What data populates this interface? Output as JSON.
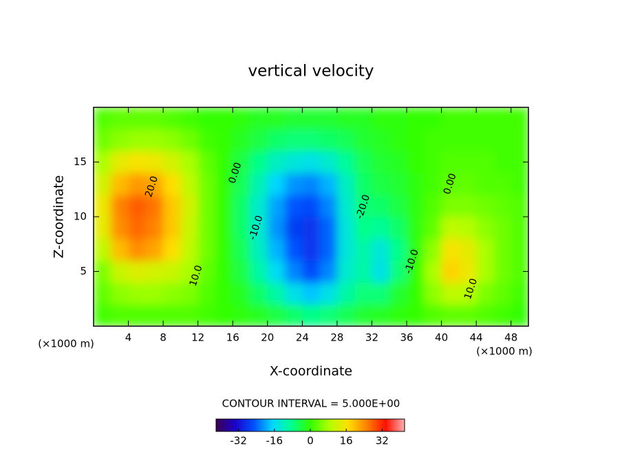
{
  "chart_data": {
    "type": "contour",
    "title": "vertical velocity",
    "x_label": "X-coordinate",
    "y_label": "Z-coordinate",
    "x_units": "(×1000 m)",
    "y_units": "(×1000 m)",
    "note": "CONTOUR INTERVAL = 5.000E+00",
    "xlim": [
      0,
      50
    ],
    "ylim": [
      0,
      20
    ],
    "xticks": [
      4,
      8,
      12,
      16,
      20,
      24,
      28,
      32,
      36,
      40,
      44,
      48
    ],
    "yticks": [
      5,
      10,
      15
    ],
    "x": [
      1,
      3,
      5,
      7,
      9,
      11,
      13,
      15,
      17,
      19,
      21,
      23,
      25,
      27,
      29,
      31,
      33,
      35,
      37,
      39,
      41,
      43,
      45,
      47,
      49
    ],
    "y": [
      1,
      3,
      5,
      7,
      9,
      11,
      13,
      15,
      17,
      19
    ],
    "values": [
      [
        1,
        2,
        2,
        2,
        2,
        2,
        1,
        0,
        -1,
        -2,
        -4,
        -6,
        -8,
        -7,
        -5,
        -3,
        -2,
        -1,
        0,
        2,
        3,
        3,
        2,
        1,
        0
      ],
      [
        3,
        6,
        7,
        7,
        6,
        5,
        2,
        0,
        -2,
        -6,
        -10,
        -15,
        -18,
        -15,
        -10,
        -7,
        -7,
        -3,
        0,
        6,
        10,
        9,
        5,
        3,
        1
      ],
      [
        5,
        11,
        13,
        12,
        11,
        8,
        3,
        0,
        -4,
        -10,
        -16,
        -22,
        -26,
        -22,
        -13,
        -10,
        -15,
        -7,
        0,
        8,
        18,
        15,
        8,
        4,
        2
      ],
      [
        10,
        20,
        24,
        22,
        17,
        10,
        4,
        0,
        -5,
        -12,
        -19,
        -25,
        -28,
        -24,
        -14,
        -10,
        -14,
        -8,
        -1,
        6,
        16,
        14,
        8,
        4,
        2
      ],
      [
        14,
        24,
        27,
        25,
        19,
        11,
        4,
        0,
        -6,
        -13,
        -21,
        -27,
        -28,
        -24,
        -14,
        -8,
        -9,
        -6,
        -1,
        3,
        10,
        9,
        6,
        4,
        2
      ],
      [
        15,
        25,
        28,
        26,
        19,
        12,
        4,
        0,
        -6,
        -13,
        -20,
        -25,
        -26,
        -22,
        -13,
        -7,
        -6,
        -4,
        -1,
        2,
        5,
        5,
        4,
        3,
        2
      ],
      [
        12,
        20,
        23,
        22,
        17,
        10,
        4,
        0,
        -5,
        -11,
        -17,
        -21,
        -22,
        -19,
        -12,
        -6,
        -4,
        -3,
        -1,
        1,
        3,
        3,
        2,
        2,
        1
      ],
      [
        8,
        14,
        16,
        15,
        12,
        8,
        3,
        0,
        -4,
        -8,
        -12,
        -14,
        -15,
        -13,
        -9,
        -5,
        -3,
        -2,
        0,
        1,
        2,
        2,
        2,
        1,
        1
      ],
      [
        4,
        6,
        7,
        7,
        6,
        4,
        1,
        0,
        -2,
        -4,
        -6,
        -7,
        -7,
        -6,
        -5,
        -3,
        -2,
        -1,
        0,
        1,
        1,
        1,
        1,
        1,
        1
      ],
      [
        2,
        3,
        3,
        3,
        2,
        1,
        0,
        0,
        -1,
        -2,
        -2,
        -3,
        -3,
        -3,
        -2,
        -2,
        -1,
        -1,
        0,
        0,
        1,
        1,
        1,
        1,
        1
      ]
    ],
    "contour_labels": [
      {
        "text": "20.0",
        "x": 6.7,
        "y": 12.75
      },
      {
        "text": "10.0",
        "x": 11.8,
        "y": 4.6
      },
      {
        "text": "0.00",
        "x": 16.3,
        "y": 14
      },
      {
        "text": "-10.0",
        "x": 18.7,
        "y": 9
      },
      {
        "text": "-20.0",
        "x": 31,
        "y": 10.9
      },
      {
        "text": "-10.0",
        "x": 36.6,
        "y": 5.9
      },
      {
        "text": "0.00",
        "x": 41,
        "y": 13
      },
      {
        "text": "10.0",
        "x": 43.4,
        "y": 3.4
      }
    ],
    "clim": [
      -42,
      42
    ],
    "cticks": [
      -32,
      -16,
      0,
      16,
      32
    ],
    "colormap": [
      "#3c0050",
      "#1a00c8",
      "#0050ff",
      "#00d8ff",
      "#00ff90",
      "#33ff00",
      "#b0ff00",
      "#ffe000",
      "#ff8000",
      "#ff1000",
      "#ffb0b0"
    ]
  }
}
